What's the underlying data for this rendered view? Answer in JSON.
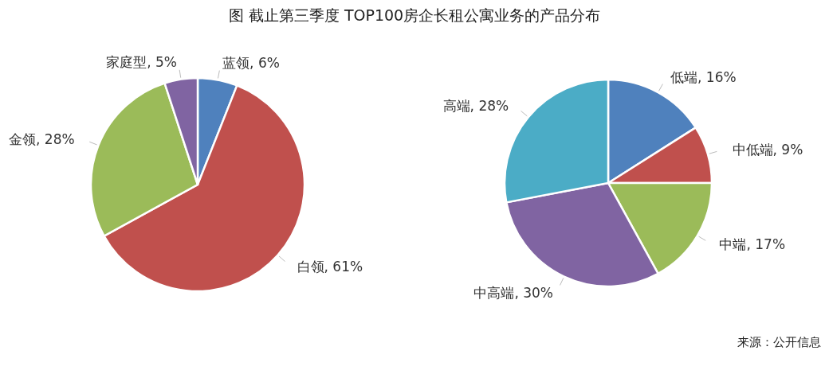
{
  "chart_data": [
    {
      "type": "pie",
      "title": "图 截止第三季度 TOP100房企长租公寓业务的产品分布",
      "categories": [
        "蓝领",
        "白领",
        "金领",
        "家庭型"
      ],
      "values": [
        6,
        61,
        28,
        5
      ],
      "colors": [
        "#4f81bd",
        "#c0504d",
        "#9bbb59",
        "#8064a2"
      ],
      "value_labels": [
        "6%",
        "61%",
        "28%",
        "5%"
      ]
    },
    {
      "type": "pie",
      "categories": [
        "低端",
        "中低端",
        "中端",
        "中高端",
        "高端"
      ],
      "values": [
        16,
        9,
        17,
        30,
        28
      ],
      "colors": [
        "#4f81bd",
        "#c0504d",
        "#9bbb59",
        "#8064a2",
        "#4bacc6"
      ],
      "value_labels": [
        "16%",
        "9%",
        "17%",
        "30%",
        "28%"
      ],
      "annotations": [
        "来源：公开信息"
      ]
    }
  ]
}
